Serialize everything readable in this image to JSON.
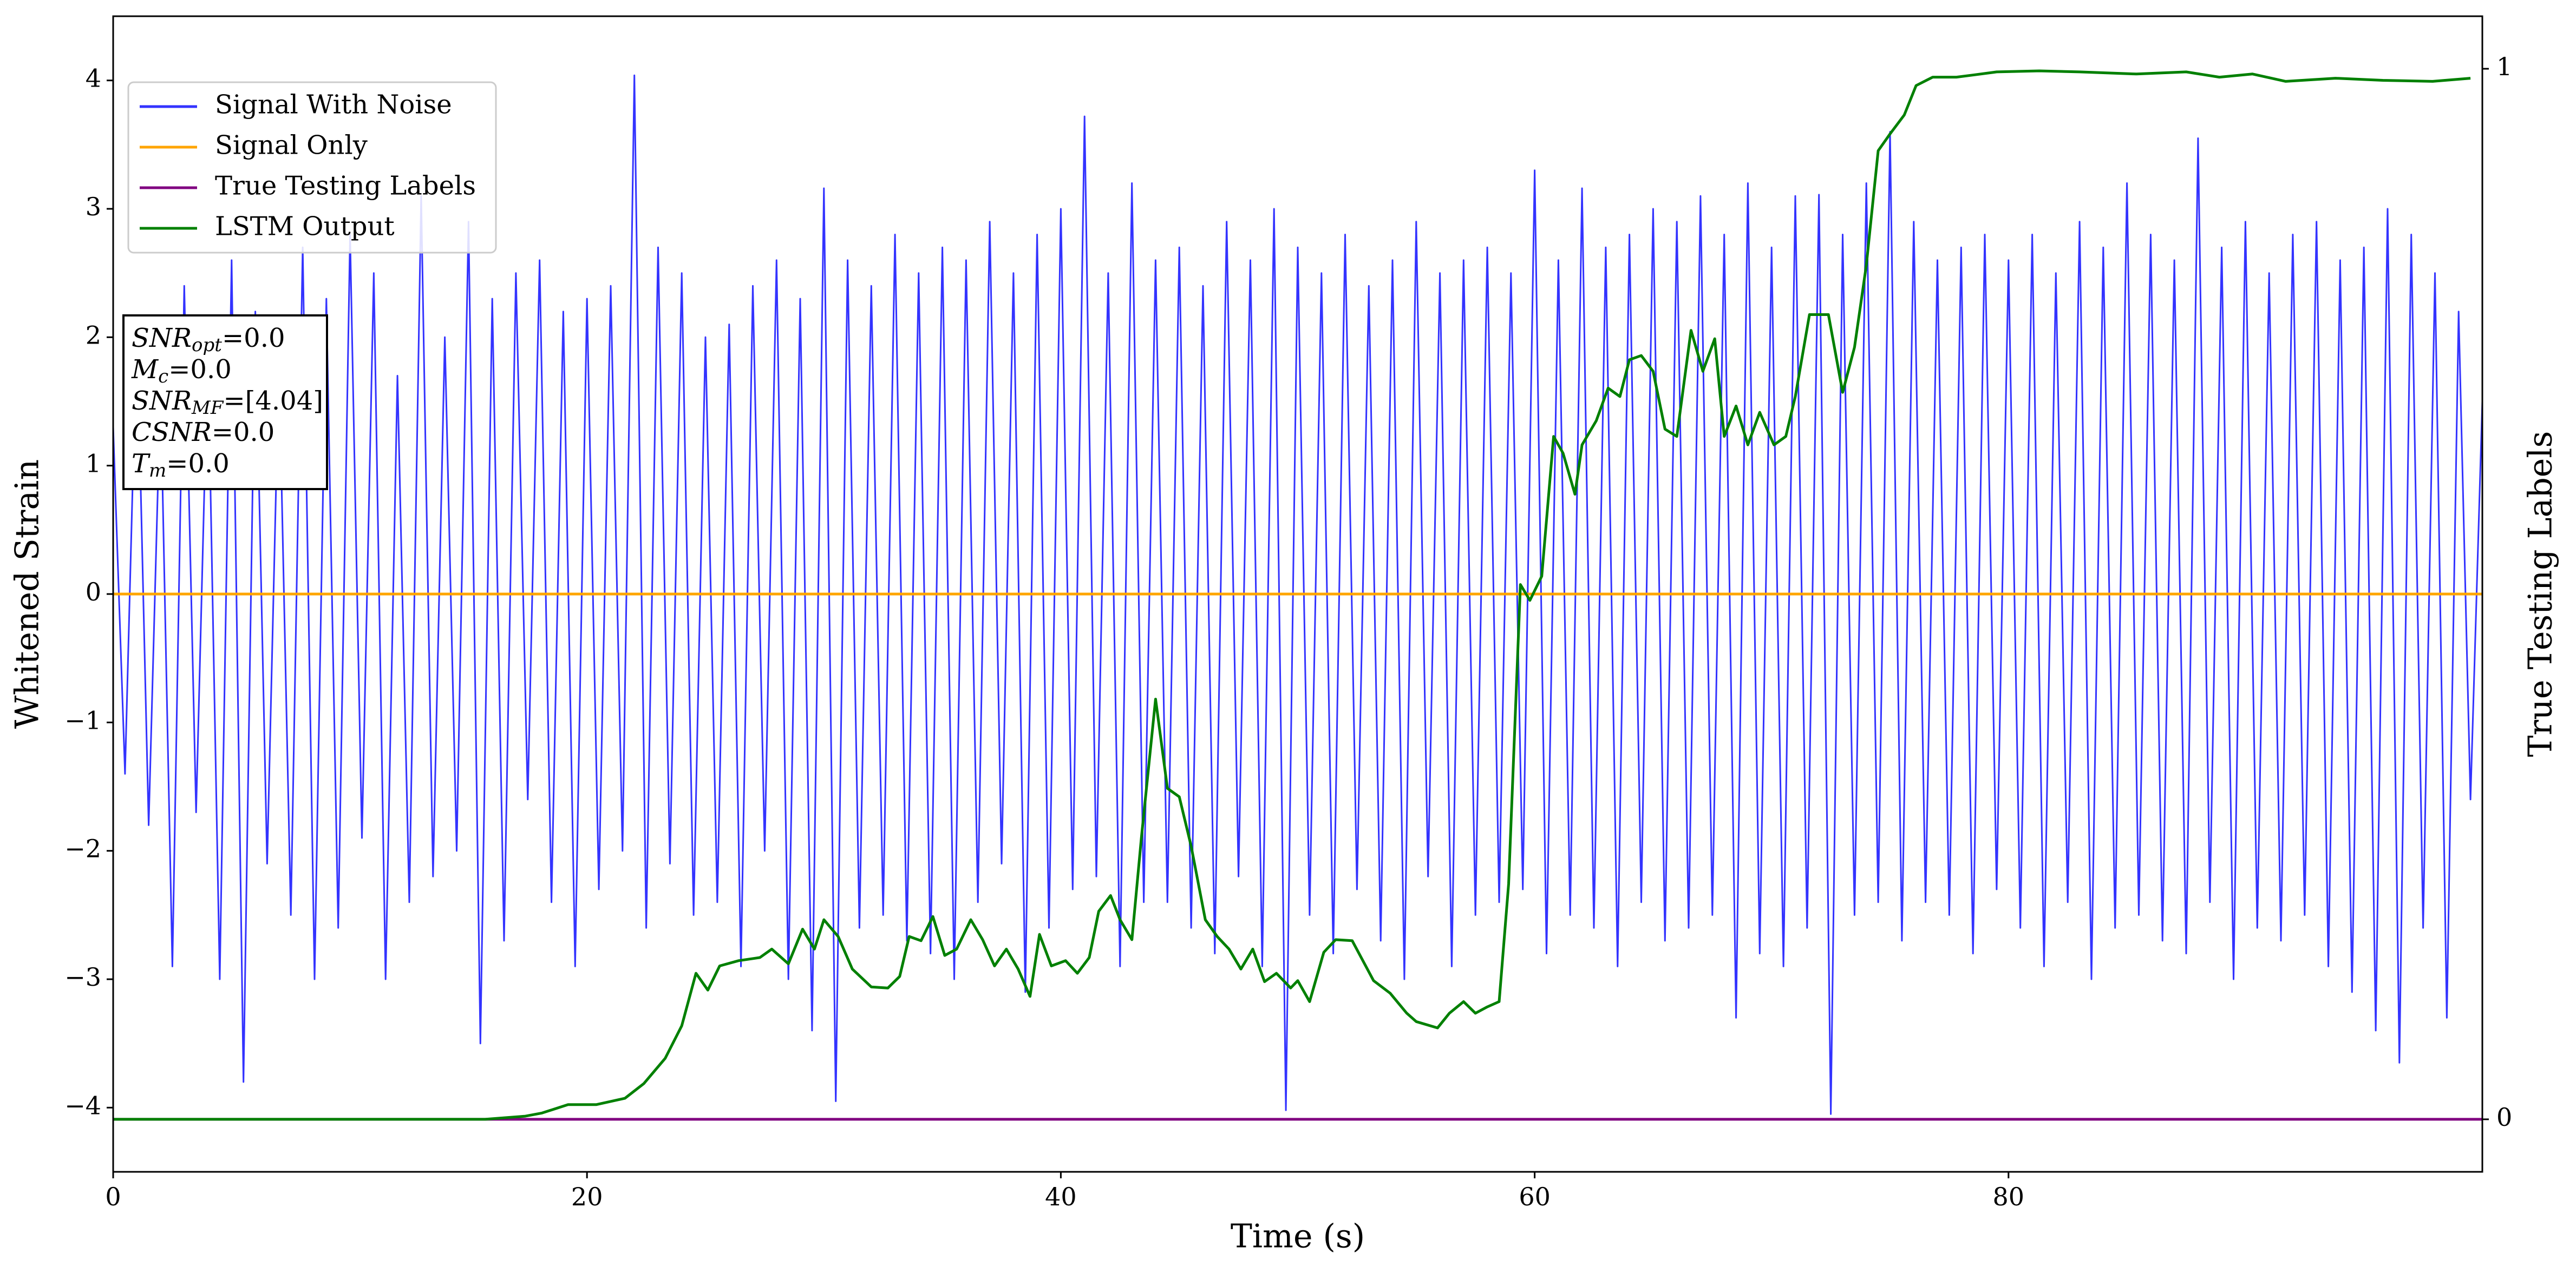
{
  "chart_data": {
    "type": "line",
    "xlabel": "Time (s)",
    "ylabel": "Whitened Strain",
    "y2label": "True Testing Labels",
    "xlim": [
      0,
      100
    ],
    "ylim": [
      -4.5,
      4.5
    ],
    "y2lim": [
      -0.05,
      1.05
    ],
    "xticks": [
      0,
      20,
      40,
      60,
      80
    ],
    "yticks": [
      -4,
      -3,
      -2,
      -1,
      0,
      1,
      2,
      3,
      4
    ],
    "y2ticks": [
      0,
      1
    ],
    "legend": "upper left",
    "annotation": [
      {
        "symbol": "SNR",
        "subscript": "opt",
        "text": "=0.0"
      },
      {
        "symbol": "M",
        "subscript": "c",
        "text": "=0.0"
      },
      {
        "symbol": "SNR",
        "subscript": "MF",
        "text": "=[4.04]"
      },
      {
        "symbol": "CSNR",
        "subscript": "",
        "text": "=0.0"
      },
      {
        "symbol": "T",
        "subscript": "m",
        "text": "=0.0"
      }
    ],
    "series": [
      {
        "name": "Signal With Noise",
        "color": "#3333ff",
        "axis": "y",
        "x": [
          0,
          0.5,
          1,
          1.5,
          2,
          2.5,
          3,
          3.5,
          4,
          4.5,
          5,
          5.5,
          6,
          6.5,
          7,
          7.5,
          8,
          8.5,
          9,
          9.5,
          10,
          10.5,
          11,
          11.5,
          12,
          12.5,
          13,
          13.5,
          14,
          14.5,
          15,
          15.5,
          16,
          16.5,
          17,
          17.5,
          18,
          18.5,
          19,
          19.5,
          20,
          20.5,
          21,
          21.5,
          22,
          22.5,
          23,
          23.5,
          24,
          24.5,
          25,
          25.5,
          26,
          26.5,
          27,
          27.5,
          28,
          28.5,
          29,
          29.5,
          30,
          30.5,
          31,
          31.5,
          32,
          32.5,
          33,
          33.5,
          34,
          34.5,
          35,
          35.5,
          36,
          36.5,
          37,
          37.5,
          38,
          38.5,
          39,
          39.5,
          40,
          40.5,
          41,
          41.5,
          42,
          42.5,
          43,
          43.5,
          44,
          44.5,
          45,
          45.5,
          46,
          46.5,
          47,
          47.5,
          48,
          48.5,
          49,
          49.5,
          50,
          50.5,
          51,
          51.5,
          52,
          52.5,
          53,
          53.5,
          54,
          54.5,
          55,
          55.5,
          56,
          56.5,
          57,
          57.5,
          58,
          58.5,
          59,
          59.5,
          60,
          60.5,
          61,
          61.5,
          62,
          62.5,
          63,
          63.5,
          64,
          64.5,
          65,
          65.5,
          66,
          66.5,
          67,
          67.5,
          68,
          68.5,
          69,
          69.5,
          70,
          70.5,
          71,
          71.5,
          72,
          72.5,
          73,
          73.5,
          74,
          74.5,
          75,
          75.5,
          76,
          76.5,
          77,
          77.5,
          78,
          78.5,
          79,
          79.5,
          80,
          80.5,
          81,
          81.5,
          82,
          82.5,
          83,
          83.5,
          84,
          84.5,
          85,
          85.5,
          86,
          86.5,
          87,
          87.5,
          88,
          88.5,
          89,
          89.5,
          90,
          90.5,
          91,
          91.5,
          92,
          92.5,
          93,
          93.5,
          94,
          94.5,
          95,
          95.5,
          96,
          96.5,
          97,
          97.5,
          98,
          98.5,
          99,
          99.5,
          100
        ],
        "values": [
          1.3,
          -1.4,
          2.1,
          -1.8,
          1.6,
          -2.9,
          2.4,
          -1.7,
          1.9,
          -3.0,
          2.6,
          -3.8,
          2.2,
          -2.1,
          1.8,
          -2.5,
          2.7,
          -3.0,
          2.3,
          -2.6,
          2.8,
          -1.9,
          2.5,
          -3.0,
          1.7,
          -2.4,
          3.1,
          -2.2,
          2.0,
          -2.0,
          2.9,
          -3.5,
          2.3,
          -2.7,
          2.5,
          -1.6,
          2.6,
          -2.4,
          2.2,
          -2.9,
          2.3,
          -2.3,
          2.4,
          -2.0,
          4.04,
          -2.6,
          2.7,
          -2.1,
          2.5,
          -2.5,
          2.0,
          -2.4,
          2.1,
          -2.9,
          2.4,
          -2.0,
          2.6,
          -3.0,
          2.3,
          -3.4,
          3.16,
          -3.95,
          2.6,
          -2.6,
          2.4,
          -2.5,
          2.8,
          -2.7,
          2.5,
          -2.8,
          2.7,
          -3.0,
          2.6,
          -2.4,
          2.9,
          -2.1,
          2.5,
          -3.1,
          2.8,
          -2.6,
          3.0,
          -2.3,
          3.72,
          -2.2,
          2.5,
          -2.9,
          3.2,
          -2.4,
          2.6,
          -2.4,
          2.7,
          -2.6,
          2.4,
          -2.8,
          2.9,
          -2.2,
          2.6,
          -2.9,
          3.0,
          -4.02,
          2.7,
          -2.5,
          2.5,
          -2.8,
          2.8,
          -2.3,
          2.4,
          -2.7,
          2.6,
          -3.0,
          2.9,
          -2.2,
          2.5,
          -2.9,
          2.6,
          -2.5,
          2.7,
          -2.4,
          2.5,
          -2.3,
          3.3,
          -2.8,
          2.6,
          -2.5,
          3.16,
          -2.6,
          2.7,
          -2.9,
          2.8,
          -2.4,
          3.0,
          -2.7,
          2.9,
          -2.6,
          3.1,
          -2.5,
          2.8,
          -3.3,
          3.2,
          -2.8,
          2.7,
          -2.9,
          3.1,
          -2.6,
          3.11,
          -4.05,
          2.8,
          -2.5,
          3.2,
          -2.4,
          3.6,
          -2.7,
          2.9,
          -2.4,
          2.6,
          -2.5,
          2.7,
          -2.8,
          2.8,
          -2.3,
          2.6,
          -2.6,
          2.8,
          -2.9,
          2.5,
          -2.4,
          2.9,
          -3.0,
          2.7,
          -2.6,
          3.2,
          -2.5,
          2.8,
          -2.7,
          2.6,
          -2.8,
          3.55,
          -2.4,
          2.7,
          -3.0,
          2.9,
          -2.6,
          2.5,
          -2.7,
          2.8,
          -2.5,
          2.9,
          -2.9,
          2.6,
          -3.1,
          2.7,
          -3.4,
          3.0,
          -3.65,
          2.8,
          -2.6,
          2.5,
          -3.3,
          2.2,
          -1.6,
          1.5
        ]
      },
      {
        "name": "Signal Only",
        "color": "#ffa500",
        "axis": "y",
        "x": [
          0,
          100
        ],
        "values": [
          0,
          0
        ]
      },
      {
        "name": "True Testing Labels",
        "color": "#800080",
        "axis": "y2",
        "x": [
          0,
          100
        ],
        "values": [
          0,
          0
        ]
      },
      {
        "name": "LSTM Output",
        "color": "#008000",
        "axis": "y2",
        "x": [
          0,
          15.7,
          17.4,
          18.1,
          19.2,
          20.4,
          21.6,
          22.4,
          23.3,
          24.0,
          24.6,
          25.1,
          25.6,
          26.4,
          27.3,
          27.8,
          28.5,
          29.1,
          29.6,
          30.0,
          30.6,
          31.2,
          32.0,
          32.7,
          33.2,
          33.6,
          34.1,
          34.6,
          35.1,
          35.6,
          36.2,
          36.7,
          37.2,
          37.7,
          38.2,
          38.7,
          39.1,
          39.6,
          40.2,
          40.7,
          41.2,
          41.6,
          42.1,
          42.5,
          43.0,
          43.4,
          44.0,
          44.5,
          45.0,
          45.5,
          46.1,
          46.6,
          47.1,
          47.6,
          48.1,
          48.6,
          49.1,
          49.7,
          50.0,
          50.5,
          51.1,
          51.6,
          52.3,
          53.2,
          53.9,
          54.6,
          55.0,
          55.9,
          56.4,
          57.0,
          57.5,
          58.0,
          58.5,
          58.9,
          59.4,
          59.8,
          60.3,
          60.8,
          61.2,
          61.7,
          62.0,
          62.6,
          63.1,
          63.6,
          64.0,
          64.5,
          65.0,
          65.5,
          66.0,
          66.6,
          67.1,
          67.6,
          68.0,
          68.5,
          69.0,
          69.5,
          70.1,
          70.6,
          71.0,
          71.6,
          72.4,
          73.0,
          73.5,
          74.0,
          74.5,
          75.0,
          75.6,
          76.1,
          76.8,
          77.8,
          78.5,
          79.5,
          81.3,
          83.0,
          85.4,
          87.5,
          88.9,
          90.3,
          91.7,
          93.8,
          95.8,
          97.9,
          99.5
        ],
        "values": [
          0,
          0,
          0.003,
          0.006,
          0.014,
          0.014,
          0.02,
          0.034,
          0.058,
          0.089,
          0.139,
          0.123,
          0.146,
          0.151,
          0.154,
          0.162,
          0.148,
          0.181,
          0.162,
          0.19,
          0.174,
          0.143,
          0.126,
          0.125,
          0.136,
          0.174,
          0.17,
          0.193,
          0.156,
          0.162,
          0.19,
          0.171,
          0.146,
          0.162,
          0.143,
          0.117,
          0.176,
          0.146,
          0.151,
          0.139,
          0.154,
          0.198,
          0.213,
          0.19,
          0.171,
          0.268,
          0.4,
          0.315,
          0.307,
          0.26,
          0.19,
          0.174,
          0.162,
          0.143,
          0.162,
          0.131,
          0.139,
          0.125,
          0.132,
          0.112,
          0.159,
          0.171,
          0.17,
          0.132,
          0.12,
          0.101,
          0.093,
          0.087,
          0.101,
          0.112,
          0.101,
          0.107,
          0.112,
          0.224,
          0.509,
          0.494,
          0.517,
          0.65,
          0.634,
          0.595,
          0.642,
          0.665,
          0.696,
          0.688,
          0.723,
          0.727,
          0.712,
          0.657,
          0.65,
          0.751,
          0.712,
          0.743,
          0.65,
          0.679,
          0.642,
          0.673,
          0.642,
          0.65,
          0.688,
          0.766,
          0.766,
          0.692,
          0.735,
          0.813,
          0.922,
          0.938,
          0.956,
          0.984,
          0.992,
          0.992,
          0.994,
          0.997,
          0.998,
          0.997,
          0.995,
          0.997,
          0.992,
          0.995,
          0.988,
          0.991,
          0.989,
          0.988,
          0.991
        ]
      }
    ]
  }
}
